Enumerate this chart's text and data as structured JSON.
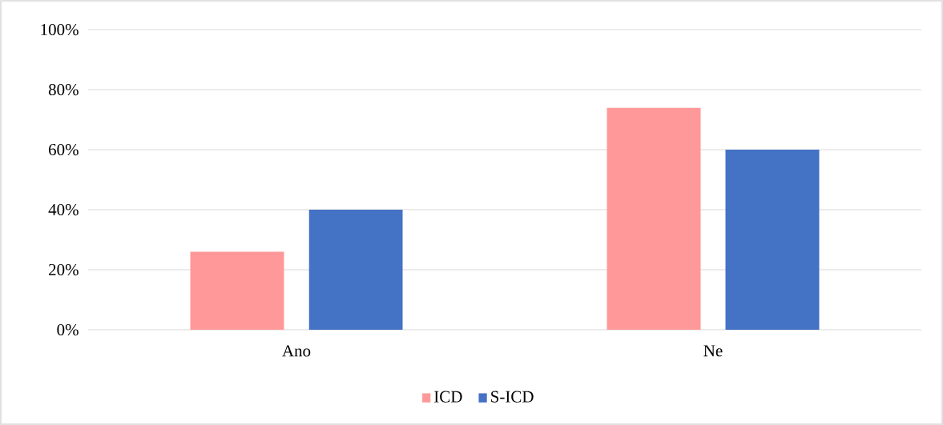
{
  "chart_data": {
    "type": "bar",
    "categories": [
      "Ano",
      "Ne"
    ],
    "series": [
      {
        "name": "ICD",
        "color": "#ff9999",
        "values": [
          26,
          74
        ]
      },
      {
        "name": "S-ICD",
        "color": "#4472c4",
        "values": [
          40,
          60
        ]
      }
    ],
    "ylim": [
      0,
      100
    ],
    "yticks": [
      {
        "value": 0,
        "label": "0%"
      },
      {
        "value": 20,
        "label": "20%"
      },
      {
        "value": 40,
        "label": "40%"
      },
      {
        "value": 60,
        "label": "60%"
      },
      {
        "value": 80,
        "label": "80%"
      },
      {
        "value": 100,
        "label": "100%"
      }
    ],
    "grid": "y",
    "legend": "bottom"
  }
}
